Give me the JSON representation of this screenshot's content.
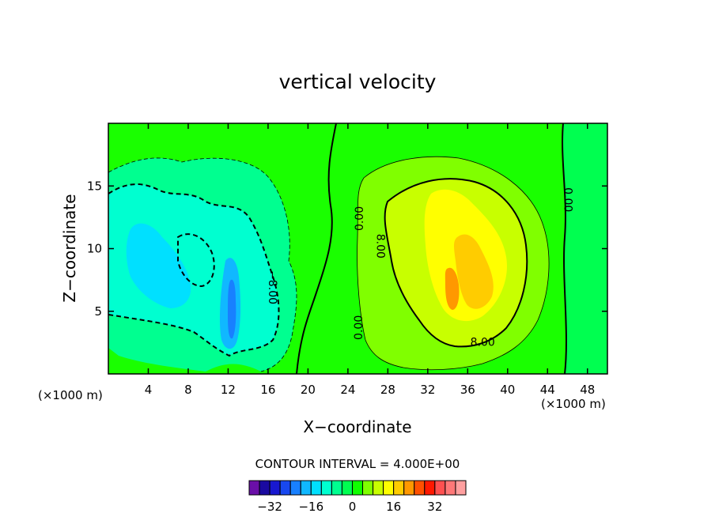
{
  "chart_data": {
    "type": "heatmap",
    "title": "vertical velocity",
    "xlabel": "X−coordinate",
    "ylabel": "Z−coordinate",
    "x_unit_left": "(×1000 m)",
    "x_unit_right": "(×1000 m)",
    "xlim": [
      0,
      50
    ],
    "ylim": [
      0,
      20
    ],
    "x_ticks": [
      4,
      8,
      12,
      16,
      20,
      24,
      28,
      32,
      36,
      40,
      44,
      48
    ],
    "y_ticks": [
      5,
      10,
      15
    ],
    "contour_interval_text": "CONTOUR INTERVAL = 4.000E+00",
    "colorbar": {
      "levels": [
        -36,
        -32,
        -28,
        -24,
        -20,
        -16,
        -12,
        -8,
        -4,
        0,
        4,
        8,
        12,
        16,
        20,
        24,
        28,
        32,
        36
      ],
      "colors": [
        "#6a0fa8",
        "#1a0aa0",
        "#1818d0",
        "#1848f0",
        "#1880ff",
        "#10b8ff",
        "#00e0ff",
        "#00ffd0",
        "#00ff90",
        "#00ff50",
        "#10ff00",
        "#80ff00",
        "#c8ff00",
        "#ffff00",
        "#ffcc00",
        "#ff9800",
        "#ff5000",
        "#ff1800",
        "#ff5050",
        "#ff7878",
        "#ffa0a0"
      ],
      "tick_labels": [
        "−32",
        "−16",
        "0",
        "16",
        "32"
      ],
      "tick_values": [
        -32,
        -16,
        0,
        16,
        32
      ]
    },
    "contour_labels": [
      {
        "text": "0.00",
        "x": 25.2,
        "z": 12.4,
        "rotate": -90
      },
      {
        "text": "0.00",
        "x": 25.1,
        "z": 3.7,
        "rotate": -90
      },
      {
        "text": "8.00",
        "x": 27.2,
        "z": 10.2,
        "rotate": 90
      },
      {
        "text": "8.00",
        "x": 37.5,
        "z": 2.5,
        "rotate": 0
      },
      {
        "text": "0.00",
        "x": 46.0,
        "z": 13.9,
        "rotate": 90
      },
      {
        "text": "−8.00",
        "x": 16.4,
        "z": 6.9,
        "rotate": 90
      }
    ],
    "regions": [
      {
        "value": 0,
        "kind": "background"
      },
      {
        "value": -4,
        "kind": "downdraft west region"
      },
      {
        "value": -8,
        "kind": "downdraft core"
      },
      {
        "value": -12,
        "kind": "downdraft core"
      },
      {
        "value": -16,
        "kind": "narrow downdraft"
      },
      {
        "value": 4,
        "kind": "updraft region"
      },
      {
        "value": 8,
        "kind": "updraft"
      },
      {
        "value": 12,
        "kind": "updraft"
      },
      {
        "value": 16,
        "kind": "updraft"
      },
      {
        "value": 20,
        "kind": "updraft core"
      }
    ]
  }
}
